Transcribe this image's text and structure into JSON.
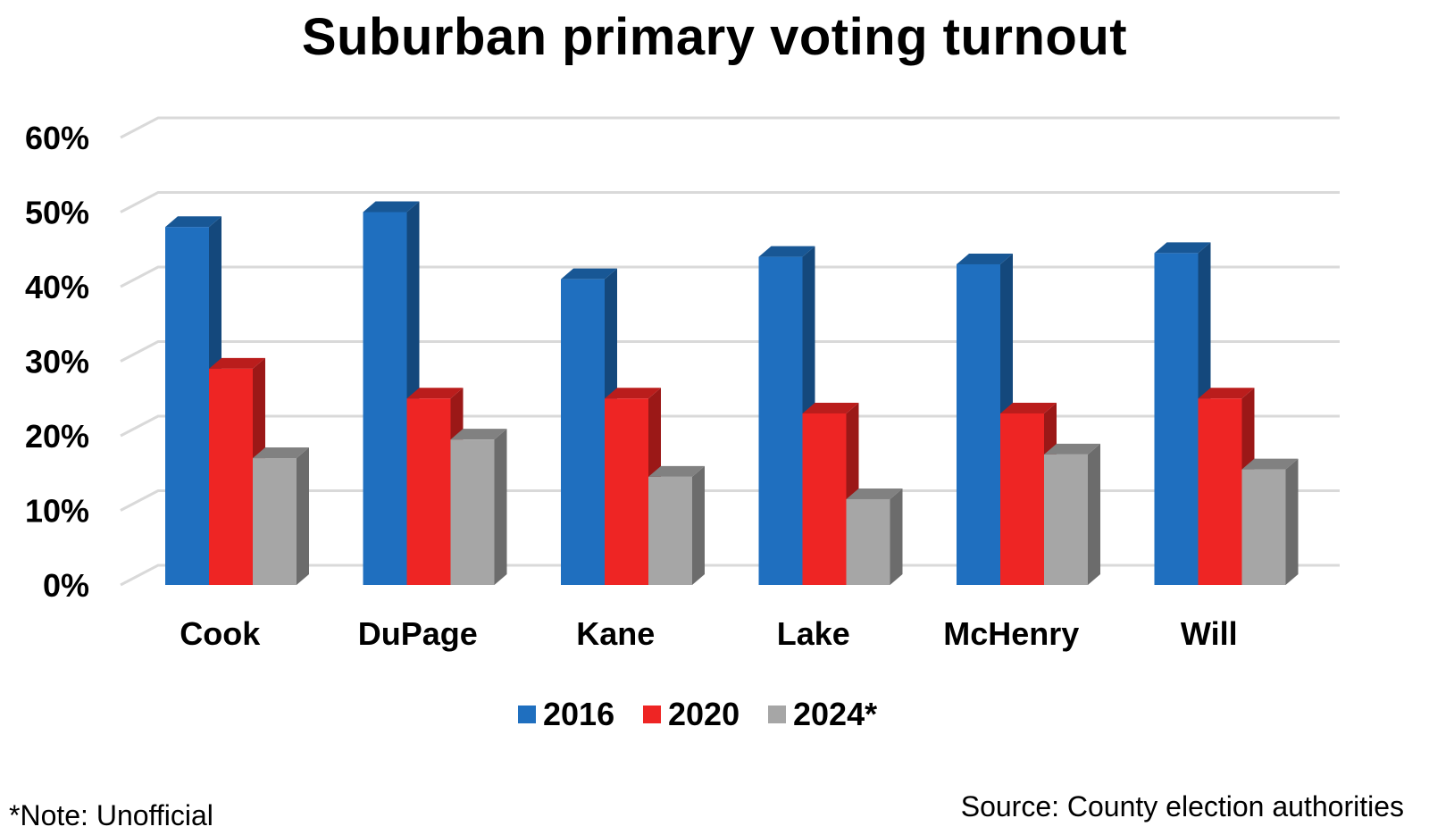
{
  "chart_data": {
    "type": "bar",
    "title": "Suburban primary voting turnout",
    "categories": [
      "Cook",
      "DuPage",
      "Kane",
      "Lake",
      "McHenry",
      "Will"
    ],
    "series": [
      {
        "name": "2016",
        "values": [
          48,
          50,
          41,
          44,
          43,
          44.5
        ],
        "color": "#1f6fbf"
      },
      {
        "name": "2020",
        "values": [
          29,
          25,
          25,
          23,
          23,
          25
        ],
        "color": "#ee2524"
      },
      {
        "name": "2024*",
        "values": [
          17,
          19.5,
          14.5,
          11.5,
          17.5,
          15.5
        ],
        "color": "#a6a6a6"
      }
    ],
    "y_ticks": [
      "0%",
      "10%",
      "20%",
      "30%",
      "40%",
      "50%",
      "60%"
    ],
    "ylim": [
      0,
      60
    ],
    "grid": true,
    "legend_position": "bottom",
    "note": "*Note: Unofficial",
    "source": "Source: County election authorities"
  }
}
